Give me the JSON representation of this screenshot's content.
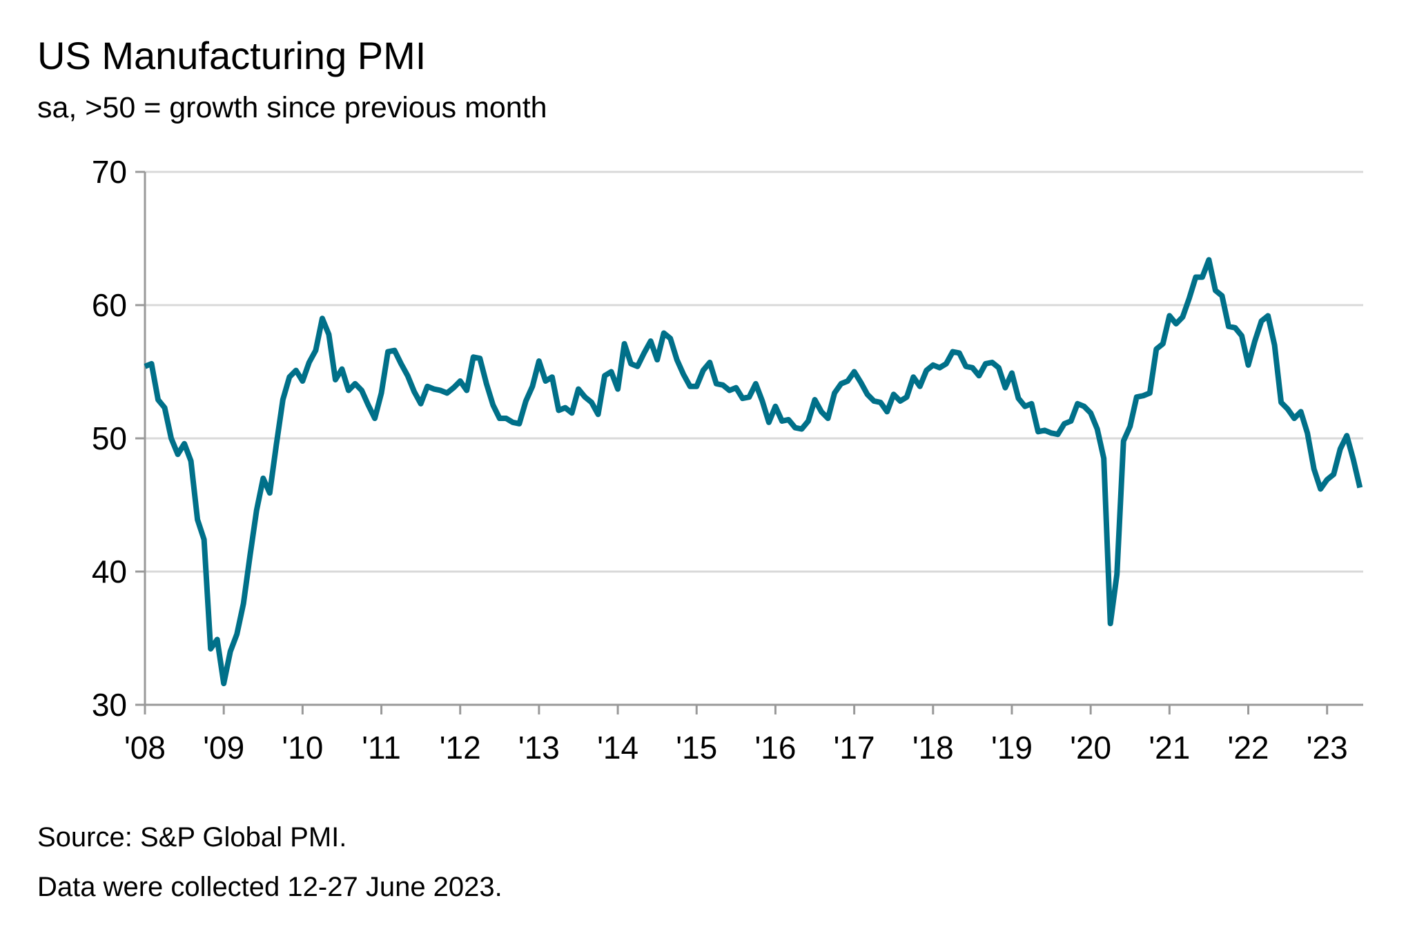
{
  "chart_data": {
    "type": "line",
    "title": "US Manufacturing PMI",
    "subtitle": "sa, >50 = growth since previous month",
    "source": "Source: S&P Global PMI.",
    "note": "Data were collected 12-27 June 2023.",
    "xlabel": "",
    "ylabel": "",
    "ylim": [
      30,
      70
    ],
    "yticks": [
      30,
      40,
      50,
      60,
      70
    ],
    "xlim": [
      2008.0,
      2023.458
    ],
    "xticks": [
      {
        "value": 2008,
        "label": "'08"
      },
      {
        "value": 2009,
        "label": "'09"
      },
      {
        "value": 2010,
        "label": "'10"
      },
      {
        "value": 2011,
        "label": "'11"
      },
      {
        "value": 2012,
        "label": "'12"
      },
      {
        "value": 2013,
        "label": "'13"
      },
      {
        "value": 2014,
        "label": "'14"
      },
      {
        "value": 2015,
        "label": "'15"
      },
      {
        "value": 2016,
        "label": "'16"
      },
      {
        "value": 2017,
        "label": "'17"
      },
      {
        "value": 2018,
        "label": "'18"
      },
      {
        "value": 2019,
        "label": "'19"
      },
      {
        "value": 2020,
        "label": "'20"
      },
      {
        "value": 2021,
        "label": "'21"
      },
      {
        "value": 2022,
        "label": "'22"
      },
      {
        "value": 2023,
        "label": "'23"
      }
    ],
    "grid": true,
    "line_color": "#007089",
    "grid_color": "#d9d9d9",
    "axis_color": "#999999",
    "series": [
      {
        "x_start": "2008-01",
        "x_step": "month",
        "values": [
          55.4,
          55.6,
          52.9,
          52.3,
          50.0,
          48.8,
          49.6,
          48.3,
          43.9,
          42.4,
          34.2,
          34.9,
          31.6,
          34.0,
          35.3,
          37.6,
          41.2,
          44.6,
          47.0,
          45.9,
          49.5,
          52.9,
          54.6,
          55.1,
          54.3,
          55.7,
          56.6,
          59.0,
          57.8,
          54.4,
          55.2,
          53.6,
          54.1,
          53.6,
          52.5,
          51.5,
          53.4,
          56.5,
          56.6,
          55.6,
          54.7,
          53.5,
          52.6,
          53.9,
          53.7,
          53.6,
          53.4,
          53.8,
          54.3,
          53.6,
          56.1,
          56.0,
          54.1,
          52.5,
          51.5,
          51.5,
          51.2,
          51.1,
          52.8,
          53.9,
          55.8,
          54.3,
          54.6,
          52.1,
          52.3,
          51.9,
          53.7,
          53.1,
          52.7,
          51.8,
          54.7,
          55.0,
          53.7,
          57.1,
          55.6,
          55.4,
          56.4,
          57.3,
          55.9,
          57.9,
          57.5,
          55.9,
          54.8,
          53.9,
          53.9,
          55.1,
          55.7,
          54.1,
          54.0,
          53.6,
          53.8,
          53.0,
          53.1,
          54.1,
          52.8,
          51.2,
          52.4,
          51.3,
          51.4,
          50.8,
          50.7,
          51.3,
          52.9,
          52.0,
          51.5,
          53.4,
          54.1,
          54.3,
          55.0,
          54.2,
          53.3,
          52.8,
          52.7,
          52.0,
          53.3,
          52.8,
          53.1,
          54.6,
          53.9,
          55.1,
          55.5,
          55.3,
          55.6,
          56.5,
          56.4,
          55.4,
          55.3,
          54.7,
          55.6,
          55.7,
          55.3,
          53.8,
          54.9,
          53.0,
          52.4,
          52.6,
          50.5,
          50.6,
          50.4,
          50.3,
          51.1,
          51.3,
          52.6,
          52.4,
          51.9,
          50.7,
          48.5,
          36.1,
          39.8,
          49.8,
          50.9,
          53.1,
          53.2,
          53.4,
          56.7,
          57.1,
          59.2,
          58.6,
          59.1,
          60.5,
          62.1,
          62.1,
          63.4,
          61.1,
          60.7,
          58.4,
          58.3,
          57.7,
          55.5,
          57.3,
          58.8,
          59.2,
          57.0,
          52.7,
          52.2,
          51.5,
          52.0,
          50.4,
          47.7,
          46.2,
          46.9,
          47.3,
          49.2,
          50.2,
          48.4,
          46.3
        ]
      }
    ]
  }
}
